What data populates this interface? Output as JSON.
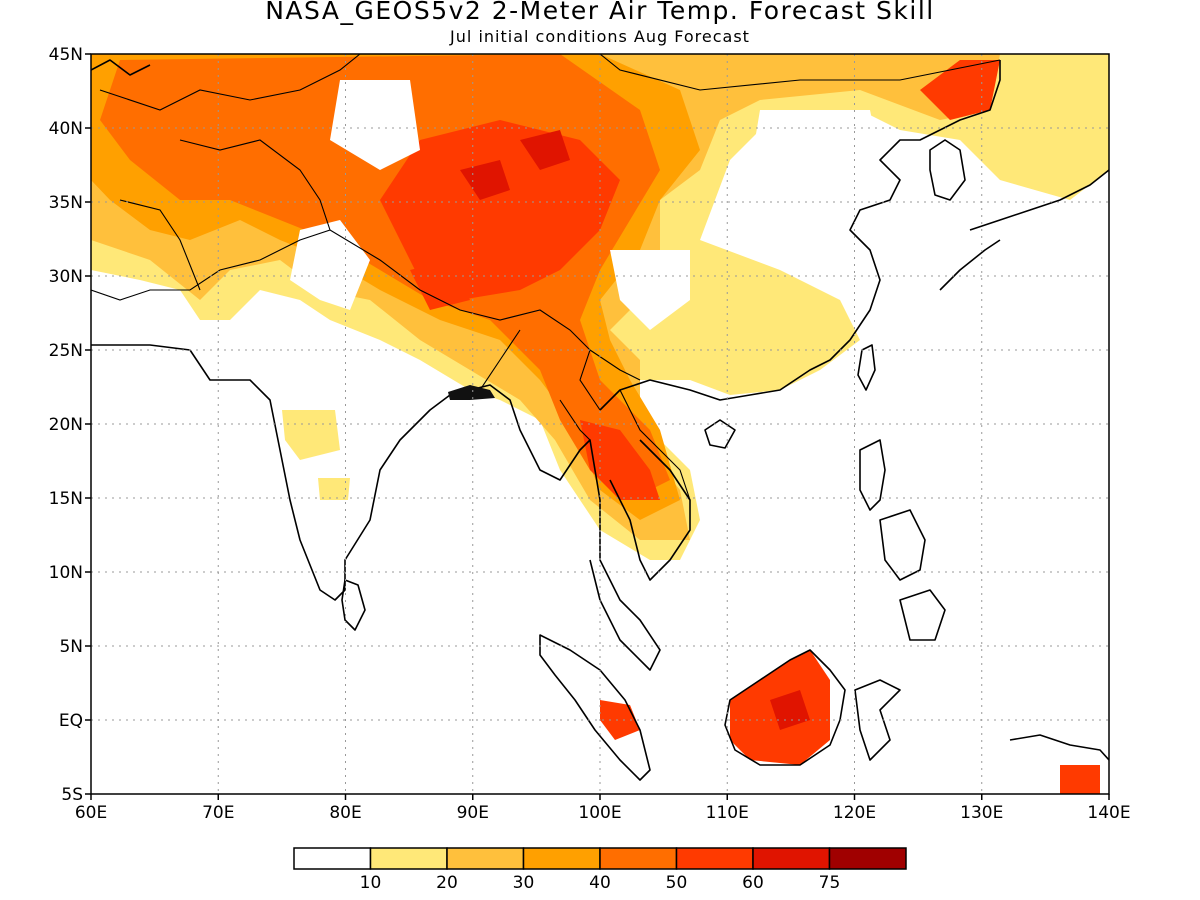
{
  "title": "NASA_GEOS5v2 2-Meter Air Temp. Forecast Skill",
  "subtitle": "Jul initial conditions  Aug Forecast",
  "map": {
    "lon_range": [
      60,
      140
    ],
    "lat_range": [
      -5,
      45
    ],
    "lat_ticks": [
      {
        "value": 45,
        "label": "45N"
      },
      {
        "value": 40,
        "label": "40N"
      },
      {
        "value": 35,
        "label": "35N"
      },
      {
        "value": 30,
        "label": "30N"
      },
      {
        "value": 25,
        "label": "25N"
      },
      {
        "value": 20,
        "label": "20N"
      },
      {
        "value": 15,
        "label": "15N"
      },
      {
        "value": 10,
        "label": "10N"
      },
      {
        "value": 5,
        "label": "5N"
      },
      {
        "value": 0,
        "label": "EQ"
      },
      {
        "value": -5,
        "label": "5S"
      }
    ],
    "lon_ticks": [
      {
        "value": 60,
        "label": "60E"
      },
      {
        "value": 70,
        "label": "70E"
      },
      {
        "value": 80,
        "label": "80E"
      },
      {
        "value": 90,
        "label": "90E"
      },
      {
        "value": 100,
        "label": "100E"
      },
      {
        "value": 110,
        "label": "110E"
      },
      {
        "value": 120,
        "label": "120E"
      },
      {
        "value": 130,
        "label": "130E"
      },
      {
        "value": 140,
        "label": "140E"
      }
    ],
    "grid": "dotted"
  },
  "colorbar": {
    "colors": [
      "#ffffff",
      "#ffe878",
      "#ffc03c",
      "#ffa000",
      "#ff6e00",
      "#ff3a00",
      "#e01400",
      "#a00000"
    ],
    "labels": [
      "10",
      "20",
      "30",
      "40",
      "50",
      "60",
      "75"
    ]
  },
  "legend_colors": {
    "c10": "#ffe878",
    "c20": "#ffc03c",
    "c30": "#ffa000",
    "c40": "#ff6e00",
    "c50": "#ff3a00",
    "c60": "#e01400",
    "c75": "#a00000"
  }
}
